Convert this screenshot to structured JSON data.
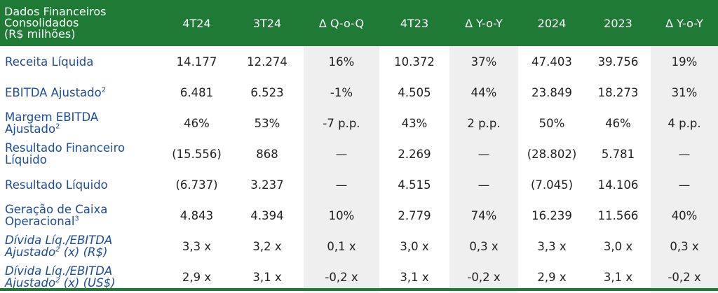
{
  "header": {
    "title_line1": "Dados Financeiros",
    "title_line2": "Consolidados",
    "title_line3": "(R$ milhões)",
    "columns": [
      "4T24",
      "3T24",
      "Δ Q-o-Q",
      "4T23",
      "Δ Y-o-Y",
      "2024",
      "2023",
      "Δ Y-o-Y"
    ]
  },
  "rows": [
    {
      "label1": "Receita Líquida",
      "sup": "",
      "label2": "",
      "label2_sup": "",
      "label2_tail": "",
      "values": [
        "14.177",
        "12.274",
        "16%",
        "10.372",
        "37%",
        "47.403",
        "39.756",
        "19%"
      ]
    },
    {
      "label1": "EBITDA Ajustado",
      "sup": "2",
      "label2": "",
      "label2_sup": "",
      "label2_tail": "",
      "values": [
        "6.481",
        "6.523",
        "-1%",
        "4.505",
        "44%",
        "23.849",
        "18.273",
        "31%"
      ]
    },
    {
      "label1": "Margem EBITDA",
      "sup": "",
      "label2": "Ajustado",
      "label2_sup": "2",
      "label2_tail": "",
      "values": [
        "46%",
        "53%",
        "-7 p.p.",
        "43%",
        "2 p.p.",
        "50%",
        "46%",
        "4 p.p."
      ]
    },
    {
      "label1": "Resultado Financeiro",
      "sup": "",
      "label2": "Líquido",
      "label2_sup": "",
      "label2_tail": "",
      "values": [
        "(15.556)",
        "868",
        "—",
        "2.269",
        "—",
        "(28.802)",
        "5.781",
        "—"
      ]
    },
    {
      "label1": "Resultado Líquido",
      "sup": "",
      "label2": "",
      "label2_sup": "",
      "label2_tail": "",
      "values": [
        "(6.737)",
        "3.237",
        "—",
        "4.515",
        "—",
        "(7.045)",
        "14.106",
        "—"
      ]
    },
    {
      "label1": "Geração de Caixa",
      "sup": "",
      "label2": "Operacional",
      "label2_sup": "3",
      "label2_tail": "",
      "values": [
        "4.843",
        "4.394",
        "10%",
        "2.779",
        "74%",
        "16.239",
        "11.566",
        "40%"
      ]
    },
    {
      "label1": "Dívida Líq./EBITDA",
      "sup": "",
      "label2": "Ajustado",
      "label2_sup": "2",
      "label2_tail": " (x) (R$)",
      "values": [
        "3,3 x",
        "3,2 x",
        "0,1 x",
        "3,0 x",
        "0,3 x",
        "3,3 x",
        "3,0 x",
        "0,3 x"
      ]
    },
    {
      "label1": "Dívida Líq./EBITDA",
      "sup": "",
      "label2": "Ajustado",
      "label2_sup": "2",
      "label2_tail": " (x) (US$)",
      "values": [
        "2,9 x",
        "3,1 x",
        "-0,2 x",
        "3,1 x",
        "-0,2 x",
        "2,9 x",
        "3,1 x",
        "-0,2 x"
      ]
    }
  ]
}
